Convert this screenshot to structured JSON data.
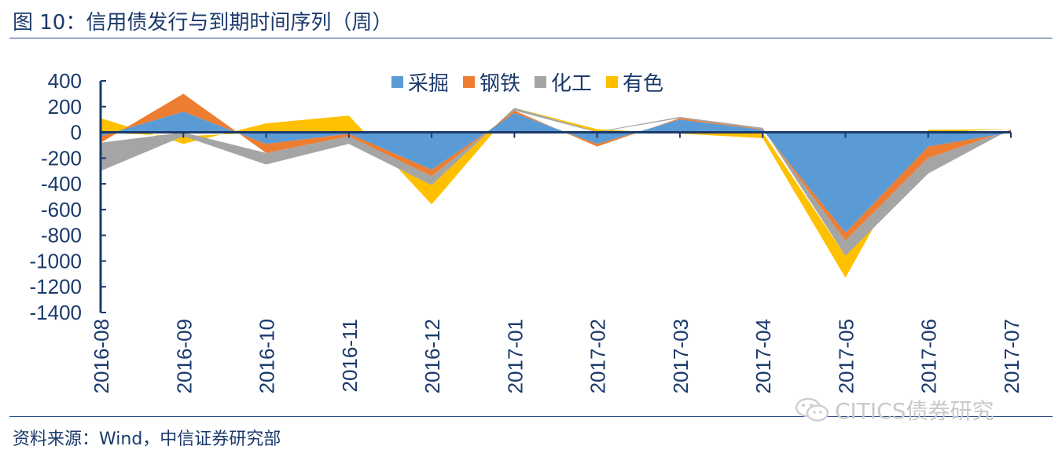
{
  "title": "图 10：信用债发行与到期时间序列（周）",
  "source": "资料来源：Wind，中信证券研究部",
  "watermark": "CITICS债券研究",
  "colors": {
    "axis": "#1b3a6b",
    "text": "#1b3a6b"
  },
  "chart_data": {
    "type": "area",
    "stacked": true,
    "categories": [
      "2016-08",
      "2016-09",
      "2016-10",
      "2016-11",
      "2016-12",
      "2017-01",
      "2017-02",
      "2017-03",
      "2017-04",
      "2017-05",
      "2017-06",
      "2017-07"
    ],
    "ylim": [
      -1400,
      400
    ],
    "yticks": [
      "400",
      "200",
      "0",
      "-200",
      "-400",
      "-600",
      "-800",
      "-1000",
      "-1200",
      "-1400"
    ],
    "grid": false,
    "legend_position": "top-center",
    "series": [
      {
        "name": "采掘",
        "color": "#5b9bd5",
        "values": [
          -30,
          160,
          -90,
          -10,
          -290,
          150,
          -90,
          100,
          20,
          -780,
          -110,
          0
        ]
      },
      {
        "name": "钢铁",
        "color": "#ed7d31",
        "values": [
          -50,
          140,
          -70,
          -20,
          -50,
          20,
          -20,
          10,
          5,
          -60,
          -90,
          20
        ]
      },
      {
        "name": "化工",
        "color": "#a5a5a5",
        "values": [
          -220,
          -30,
          -90,
          -60,
          -70,
          20,
          5,
          10,
          10,
          -120,
          -120,
          5
        ]
      },
      {
        "name": "有色",
        "color": "#ffc000",
        "values": [
          110,
          -60,
          70,
          130,
          -150,
          0,
          20,
          -10,
          -45,
          -170,
          20,
          0
        ]
      }
    ]
  }
}
